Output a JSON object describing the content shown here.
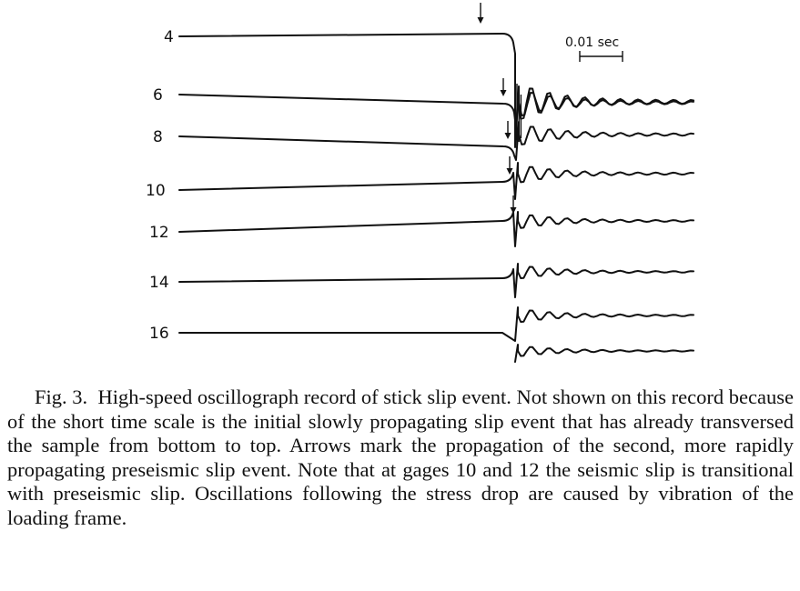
{
  "figure": {
    "scale_label": "0.01 sec",
    "gages": [
      {
        "label": "4",
        "arrow": true
      },
      {
        "label": "6",
        "arrow": true
      },
      {
        "label": "8",
        "arrow": true
      },
      {
        "label": "10",
        "arrow": true
      },
      {
        "label": "12",
        "arrow": true
      },
      {
        "label": "14",
        "arrow": false
      },
      {
        "label": "16",
        "arrow": false
      }
    ]
  },
  "caption": {
    "fig_number": "Fig. 3.",
    "text": "High-speed oscillograph record of stick slip event. Not shown on this record because of the short time scale is the initial slowly propagating slip event that has already transversed the sample from bottom to top. Arrows mark the propagation of the second, more rapidly propagating preseismic slip event. Note that at gages 10 and 12 the seismic slip is transitional with preseismic slip. Oscillations following the stress drop are caused by vibration of the loading frame."
  }
}
